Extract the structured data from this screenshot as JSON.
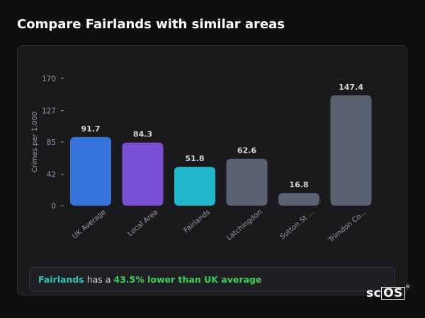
{
  "page": {
    "title": "Compare Fairlands with similar areas"
  },
  "summary": {
    "area": "Fairlands",
    "text": "has a",
    "stat": "43.5% lower than UK average"
  },
  "logo": {
    "text_a": "sc",
    "text_b": "OS",
    "reg": "®"
  },
  "colors": {
    "uk": "#3572d9",
    "local": "#7a4fd4",
    "area": "#1fb8cc",
    "other": "#5a6273",
    "axis_text": "#9a9aa2",
    "label_text": "#d6d6d6"
  },
  "chart_data": {
    "type": "bar",
    "title": "",
    "xlabel": "",
    "ylabel": "Crimes per 1,000",
    "ylim": [
      0,
      170
    ],
    "yticks": [
      0,
      42,
      85,
      127,
      170
    ],
    "grid": false,
    "categories": [
      "UK Average",
      "Local Area",
      "Fairlands",
      "Latchingdon",
      "Sutton St ...",
      "Trimdon Co..."
    ],
    "values": [
      91.7,
      84.3,
      51.8,
      62.6,
      16.8,
      147.4
    ],
    "value_labels": [
      "91.7",
      "84.3",
      "51.8",
      "62.6",
      "16.8",
      "147.4"
    ],
    "bar_colors": [
      "#3572d9",
      "#7a4fd4",
      "#1fb8cc",
      "#5a6273",
      "#5a6273",
      "#5a6273"
    ]
  }
}
